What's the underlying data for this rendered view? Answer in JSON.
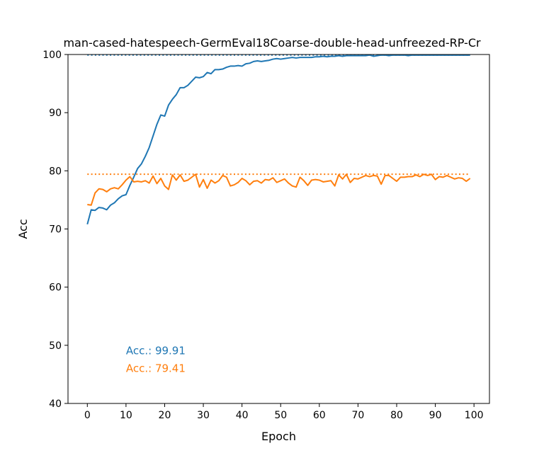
{
  "chart_data": {
    "type": "line",
    "title": "man-cased-hatespeech-GermEval18Coarse-double-head-unfreezed-RP-Cr",
    "xlabel": "Epoch",
    "ylabel": "Acc",
    "xlim": [
      -5,
      104
    ],
    "ylim": [
      40,
      100
    ],
    "xticks": [
      0,
      10,
      20,
      30,
      40,
      50,
      60,
      70,
      80,
      90,
      100
    ],
    "yticks": [
      40,
      50,
      60,
      70,
      80,
      90,
      100
    ],
    "grid": false,
    "legend": "none",
    "series": [
      {
        "color": "#1f77b4",
        "best": 99.91,
        "annotation": "Acc.: 99.91",
        "x": [
          0,
          1,
          2,
          3,
          4,
          5,
          6,
          7,
          8,
          9,
          10,
          11,
          12,
          13,
          14,
          15,
          16,
          17,
          18,
          19,
          20,
          21,
          22,
          23,
          24,
          25,
          26,
          27,
          28,
          29,
          30,
          31,
          32,
          33,
          34,
          35,
          36,
          37,
          38,
          39,
          40,
          41,
          42,
          43,
          44,
          45,
          46,
          47,
          48,
          49,
          50,
          51,
          52,
          53,
          54,
          55,
          56,
          57,
          58,
          59,
          60,
          61,
          62,
          63,
          64,
          65,
          66,
          67,
          68,
          69,
          70,
          71,
          72,
          73,
          74,
          75,
          76,
          77,
          78,
          79,
          80,
          81,
          82,
          83,
          84,
          85,
          86,
          87,
          88,
          89,
          90,
          91,
          92,
          93,
          94,
          95,
          96,
          97,
          98,
          99
        ],
        "values": [
          70.8,
          73.3,
          73.2,
          73.7,
          73.6,
          73.3,
          74.1,
          74.5,
          75.2,
          75.7,
          75.9,
          77.5,
          78.9,
          80.4,
          81.2,
          82.5,
          84.0,
          86.0,
          88.0,
          89.6,
          89.4,
          91.3,
          92.3,
          93.1,
          94.3,
          94.3,
          94.7,
          95.4,
          96.1,
          96.0,
          96.2,
          96.9,
          96.7,
          97.4,
          97.4,
          97.5,
          97.8,
          98.0,
          98.0,
          98.1,
          98.0,
          98.4,
          98.5,
          98.8,
          98.9,
          98.8,
          98.9,
          99.0,
          99.2,
          99.3,
          99.2,
          99.3,
          99.4,
          99.5,
          99.4,
          99.5,
          99.5,
          99.5,
          99.5,
          99.6,
          99.6,
          99.7,
          99.6,
          99.7,
          99.7,
          99.8,
          99.7,
          99.8,
          99.8,
          99.8,
          99.8,
          99.8,
          99.8,
          99.9,
          99.7,
          99.8,
          99.9,
          99.9,
          99.8,
          99.9,
          99.9,
          99.9,
          99.9,
          99.8,
          99.9,
          99.9,
          99.9,
          99.9,
          99.9,
          99.9,
          99.9,
          99.9,
          99.9,
          99.9,
          99.9,
          99.9,
          99.9,
          99.9,
          99.9,
          99.9
        ]
      },
      {
        "color": "#ff7f0e",
        "best": 79.41,
        "annotation": "Acc.: 79.41",
        "x": [
          0,
          1,
          2,
          3,
          4,
          5,
          6,
          7,
          8,
          9,
          10,
          11,
          12,
          13,
          14,
          15,
          16,
          17,
          18,
          19,
          20,
          21,
          22,
          23,
          24,
          25,
          26,
          27,
          28,
          29,
          30,
          31,
          32,
          33,
          34,
          35,
          36,
          37,
          38,
          39,
          40,
          41,
          42,
          43,
          44,
          45,
          46,
          47,
          48,
          49,
          50,
          51,
          52,
          53,
          54,
          55,
          56,
          57,
          58,
          59,
          60,
          61,
          62,
          63,
          64,
          65,
          66,
          67,
          68,
          69,
          70,
          71,
          72,
          73,
          74,
          75,
          76,
          77,
          78,
          79,
          80,
          81,
          82,
          83,
          84,
          85,
          86,
          87,
          88,
          89,
          90,
          91,
          92,
          93,
          94,
          95,
          96,
          97,
          98,
          99
        ],
        "values": [
          74.2,
          74.1,
          76.2,
          76.9,
          76.8,
          76.4,
          76.9,
          77.1,
          76.9,
          77.6,
          78.4,
          79.0,
          78.1,
          78.2,
          78.1,
          78.3,
          77.9,
          79.1,
          77.8,
          78.7,
          77.4,
          76.8,
          79.3,
          78.4,
          79.3,
          78.2,
          78.4,
          78.9,
          79.4,
          77.2,
          78.5,
          77.0,
          78.4,
          77.9,
          78.3,
          79.2,
          78.9,
          77.4,
          77.6,
          78.0,
          78.7,
          78.3,
          77.6,
          78.2,
          78.3,
          77.9,
          78.5,
          78.4,
          78.8,
          78.0,
          78.3,
          78.6,
          77.9,
          77.4,
          77.2,
          78.9,
          78.3,
          77.5,
          78.4,
          78.5,
          78.4,
          78.1,
          78.2,
          78.3,
          77.4,
          79.3,
          78.6,
          79.4,
          78.0,
          78.7,
          78.6,
          78.9,
          79.2,
          79.0,
          79.2,
          79.1,
          77.7,
          79.2,
          79.2,
          78.7,
          78.2,
          78.9,
          78.9,
          79.0,
          79.0,
          79.3,
          79.0,
          79.4,
          79.2,
          79.4,
          78.5,
          79.0,
          78.9,
          79.2,
          78.9,
          78.6,
          78.8,
          78.7,
          78.2,
          78.7
        ]
      }
    ]
  }
}
